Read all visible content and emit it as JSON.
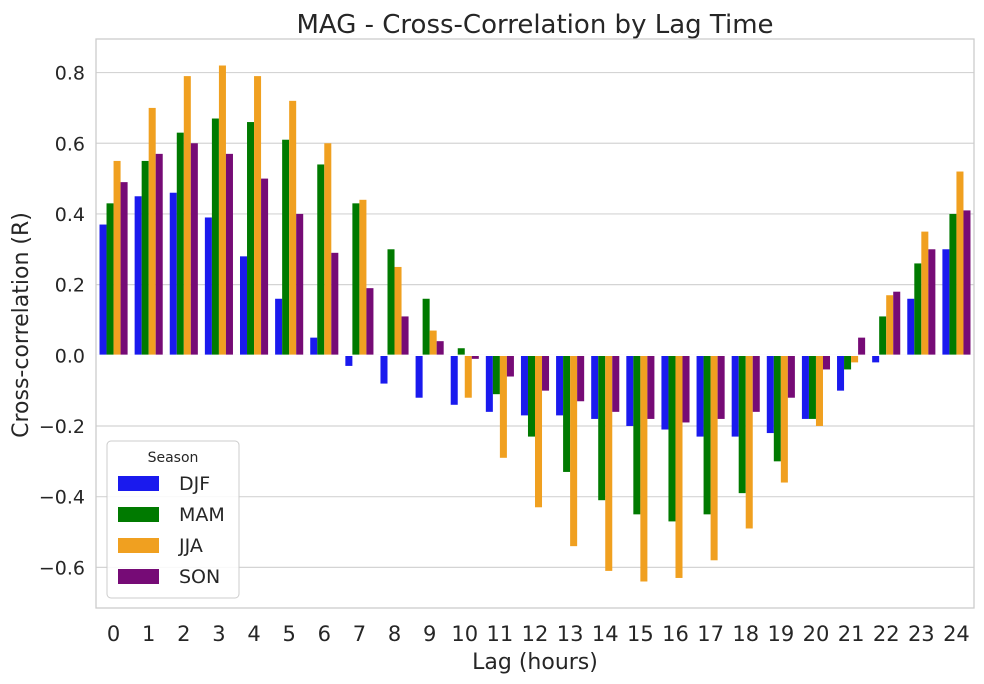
{
  "chart_data": {
    "type": "bar",
    "title": "MAG - Cross-Correlation by Lag Time",
    "xlabel": "Lag (hours)",
    "ylabel": "Cross-correlation (R)",
    "categories": [
      "0",
      "1",
      "2",
      "3",
      "4",
      "5",
      "6",
      "7",
      "8",
      "9",
      "10",
      "11",
      "12",
      "13",
      "14",
      "15",
      "16",
      "17",
      "18",
      "19",
      "20",
      "21",
      "22",
      "23",
      "24"
    ],
    "yticks": [
      "−0.6",
      "−0.4",
      "−0.2",
      "0.0",
      "0.2",
      "0.4",
      "0.6",
      "0.8"
    ],
    "ytick_values": [
      -0.6,
      -0.4,
      -0.2,
      0.0,
      0.2,
      0.4,
      0.6,
      0.8
    ],
    "ylim": [
      -0.715,
      0.895
    ],
    "grid": "horizontal",
    "legend": {
      "title": "Season",
      "placement": "lower-left"
    },
    "series": [
      {
        "name": "DJF",
        "color": "#1a1aee",
        "values": [
          0.37,
          0.45,
          0.46,
          0.39,
          0.28,
          0.16,
          0.05,
          -0.03,
          -0.08,
          -0.12,
          -0.14,
          -0.16,
          -0.17,
          -0.17,
          -0.18,
          -0.2,
          -0.21,
          -0.23,
          -0.23,
          -0.22,
          -0.18,
          -0.1,
          -0.02,
          0.16,
          0.3
        ]
      },
      {
        "name": "MAM",
        "color": "#007a00",
        "values": [
          0.43,
          0.55,
          0.63,
          0.67,
          0.66,
          0.61,
          0.54,
          0.43,
          0.3,
          0.16,
          0.02,
          -0.11,
          -0.23,
          -0.33,
          -0.41,
          -0.45,
          -0.47,
          -0.45,
          -0.39,
          -0.3,
          -0.18,
          -0.04,
          0.11,
          0.26,
          0.4
        ]
      },
      {
        "name": "JJA",
        "color": "#f0a020",
        "values": [
          0.55,
          0.7,
          0.79,
          0.82,
          0.79,
          0.72,
          0.6,
          0.44,
          0.25,
          0.07,
          -0.12,
          -0.29,
          -0.43,
          -0.54,
          -0.61,
          -0.64,
          -0.63,
          -0.58,
          -0.49,
          -0.36,
          -0.2,
          -0.02,
          0.17,
          0.35,
          0.52
        ]
      },
      {
        "name": "SON",
        "color": "#760b76",
        "values": [
          0.49,
          0.57,
          0.6,
          0.57,
          0.5,
          0.4,
          0.29,
          0.19,
          0.11,
          0.04,
          -0.01,
          -0.06,
          -0.1,
          -0.13,
          -0.16,
          -0.18,
          -0.19,
          -0.18,
          -0.16,
          -0.12,
          -0.04,
          0.05,
          0.18,
          0.3,
          0.41
        ]
      }
    ]
  }
}
